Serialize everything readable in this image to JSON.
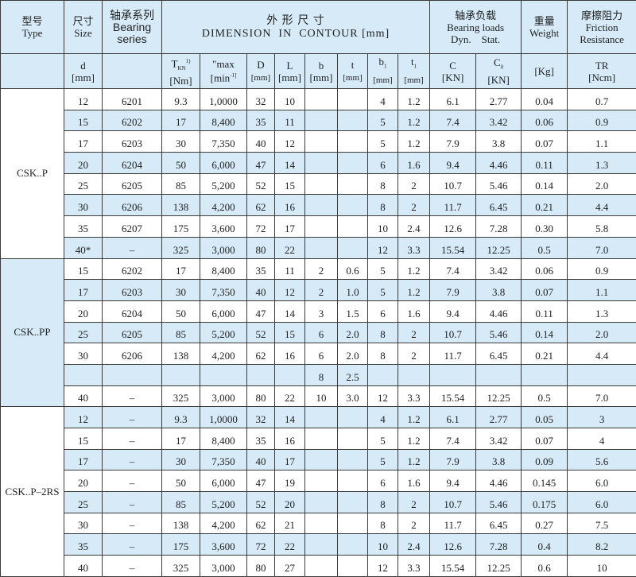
{
  "header": {
    "type_cn": "型号",
    "type_en": "Type",
    "size_cn": "尺寸",
    "size_en": "Size",
    "series_cn": "轴承系列",
    "series_en1": "Bearing",
    "series_en2": "series",
    "dim_cn": "外 形 尺 寸",
    "dim_en": "DIMENSION  IN  CONTOUR [mm]",
    "loads_cn": "轴承负载",
    "loads_en": "Bearing loads",
    "loads_sub": "Dyn.    Stat.",
    "weight_cn": "重量",
    "weight_en": "Weight",
    "friction_cn": "摩擦阻力",
    "friction_en1": "Friction",
    "friction_en2": "Resistance"
  },
  "units": {
    "d": "d",
    "d_unit": "[mm]",
    "tkn": "T",
    "tkn_sub": "KN",
    "tkn_sup": "1)",
    "tkn_unit": "[Nm]",
    "nmax": "\"max",
    "nmax_unit": "[min",
    "nmax_sup": "-1]",
    "D": "D",
    "D_unit": "[mm]",
    "L": "L",
    "L_unit": "[mm]",
    "b": "b",
    "b_unit": "[mm]",
    "t": "t",
    "t_unit": "[mm]",
    "b1": "b",
    "b1_sub": "1",
    "b1_unit": "[mm]",
    "t1": "t",
    "t1_sub": "1",
    "t1_unit": "[mm]",
    "C": "C",
    "C_unit": "[KN]",
    "C0": "C",
    "C0_sub": "0",
    "C0_unit": "[KN]",
    "kg": "[Kg]",
    "TR": "TR",
    "TR_unit": "[Ncm]"
  },
  "colors": {
    "header_bg": "#d6eaf8",
    "stripe": "#d6eaf8",
    "border": "#3a3a3a"
  },
  "groups": [
    {
      "type": "CSK..P",
      "blue": false,
      "rows": [
        {
          "blue": false,
          "cells": [
            "12",
            "6201",
            "9.3",
            "1,0000",
            "32",
            "10",
            "",
            "",
            "4",
            "1.2",
            "6.1",
            "2.77",
            "0.04",
            "0.7"
          ]
        },
        {
          "blue": true,
          "cells": [
            "15",
            "6202",
            "17",
            "8,400",
            "35",
            "11",
            "",
            "",
            "5",
            "1.2",
            "7.4",
            "3.42",
            "0.06",
            "0.9"
          ]
        },
        {
          "blue": false,
          "cells": [
            "17",
            "6203",
            "30",
            "7,350",
            "40",
            "12",
            "",
            "",
            "5",
            "1.2",
            "7.9",
            "3.8",
            "0.07",
            "1.1"
          ]
        },
        {
          "blue": true,
          "cells": [
            "20",
            "6204",
            "50",
            "6,000",
            "47",
            "14",
            "",
            "",
            "6",
            "1.6",
            "9.4",
            "4.46",
            "0.11",
            "1.3"
          ]
        },
        {
          "blue": false,
          "cells": [
            "25",
            "6205",
            "85",
            "5,200",
            "52",
            "15",
            "",
            "",
            "8",
            "2",
            "10.7",
            "5.46",
            "0.14",
            "2.0"
          ]
        },
        {
          "blue": true,
          "cells": [
            "30",
            "6206",
            "138",
            "4,200",
            "62",
            "16",
            "",
            "",
            "8",
            "2",
            "11.7",
            "6.45",
            "0.21",
            "4.4"
          ]
        },
        {
          "blue": false,
          "cells": [
            "35",
            "6207",
            "175",
            "3,600",
            "72",
            "17",
            "",
            "",
            "10",
            "2.4",
            "12.6",
            "7.28",
            "0.30",
            "5.8"
          ]
        },
        {
          "blue": true,
          "cells": [
            "40*",
            "–",
            "325",
            "3,000",
            "80",
            "22",
            "",
            "",
            "12",
            "3.3",
            "15.54",
            "12.25",
            "0.5",
            "7.0"
          ]
        }
      ]
    },
    {
      "type": "CSK..PP",
      "blue": true,
      "rows": [
        {
          "blue": false,
          "cells": [
            "15",
            "6202",
            "17",
            "8,400",
            "35",
            "11",
            "2",
            "0.6",
            "5",
            "1.2",
            "7.4",
            "3.42",
            "0.06",
            "0.9"
          ]
        },
        {
          "blue": true,
          "cells": [
            "17",
            "6203",
            "30",
            "7,350",
            "40",
            "12",
            "2",
            "1.0",
            "5",
            "1.2",
            "7.9",
            "3.8",
            "0.07",
            "1.1"
          ]
        },
        {
          "blue": false,
          "cells": [
            "20",
            "6204",
            "50",
            "6,000",
            "47",
            "14",
            "3",
            "1.5",
            "6",
            "1.6",
            "9.4",
            "4.46",
            "0.11",
            "1.3"
          ]
        },
        {
          "blue": true,
          "cells": [
            "25",
            "6205",
            "85",
            "5,200",
            "52",
            "15",
            "6",
            "2.0",
            "8",
            "2",
            "10.7",
            "5.46",
            "0.14",
            "2.0"
          ]
        },
        {
          "blue": false,
          "cells": [
            "30",
            "6206",
            "138",
            "4,200",
            "62",
            "16",
            "6",
            "2.0",
            "8",
            "2",
            "11.7",
            "6.45",
            "0.21",
            "4.4"
          ]
        },
        {
          "blue": true,
          "cells": [
            "",
            "",
            "",
            "",
            "",
            "",
            "8",
            "2.5",
            "",
            "",
            "",
            "",
            "",
            ""
          ]
        },
        {
          "blue": false,
          "cells": [
            "40",
            "–",
            "325",
            "3,000",
            "80",
            "22",
            "10",
            "3.0",
            "12",
            "3.3",
            "15.54",
            "12.25",
            "0.5",
            "7.0"
          ]
        }
      ]
    },
    {
      "type": "CSK..P–2RS",
      "blue": false,
      "rows": [
        {
          "blue": true,
          "cells": [
            "12",
            "–",
            "9.3",
            "1,0000",
            "32",
            "14",
            "",
            "",
            "4",
            "1.2",
            "6.1",
            "2.77",
            "0.05",
            "3"
          ]
        },
        {
          "blue": false,
          "cells": [
            "15",
            "–",
            "17",
            "8,400",
            "35",
            "16",
            "",
            "",
            "5",
            "1.2",
            "7.4",
            "3.42",
            "0.07",
            "4"
          ]
        },
        {
          "blue": true,
          "cells": [
            "17",
            "–",
            "30",
            "7,350",
            "40",
            "17",
            "",
            "",
            "5",
            "1.2",
            "7.9",
            "3.8",
            "0.09",
            "5.6"
          ]
        },
        {
          "blue": false,
          "cells": [
            "20",
            "–",
            "50",
            "6,000",
            "47",
            "19",
            "",
            "",
            "6",
            "1.6",
            "9.4",
            "4.46",
            "0.145",
            "6.0"
          ]
        },
        {
          "blue": true,
          "cells": [
            "25",
            "–",
            "85",
            "5,200",
            "52",
            "20",
            "",
            "",
            "8",
            "2",
            "10.7",
            "5.46",
            "0.175",
            "6.0"
          ]
        },
        {
          "blue": false,
          "cells": [
            "30",
            "–",
            "138",
            "4,200",
            "62",
            "21",
            "",
            "",
            "8",
            "2",
            "11.7",
            "6.45",
            "0.27",
            "7.5"
          ]
        },
        {
          "blue": true,
          "cells": [
            "35",
            "–",
            "175",
            "3,600",
            "72",
            "22",
            "",
            "",
            "10",
            "2.4",
            "12.6",
            "7.28",
            "0.4",
            "8.2"
          ]
        },
        {
          "blue": false,
          "cells": [
            "40",
            "–",
            "325",
            "3,000",
            "80",
            "27",
            "",
            "",
            "12",
            "3.3",
            "15.54",
            "12.25",
            "0.6",
            "10"
          ]
        }
      ]
    }
  ]
}
